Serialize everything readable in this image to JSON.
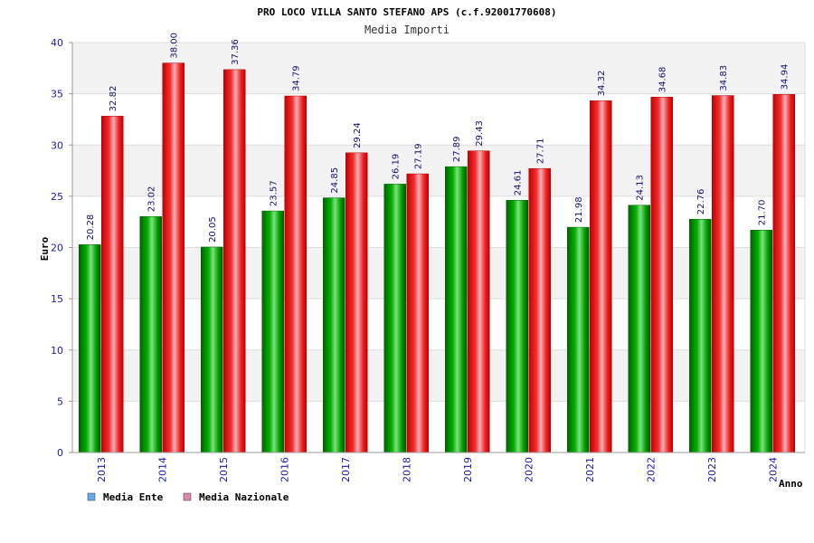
{
  "chart_data": {
    "type": "bar",
    "title": "PRO LOCO VILLA SANTO STEFANO APS (c.f.92001770608)",
    "subtitle": "Media Importi",
    "xlabel": "Anno",
    "ylabel": "Euro",
    "ylim": [
      0,
      40
    ],
    "yticks": [
      0,
      5,
      10,
      15,
      20,
      25,
      30,
      35,
      40
    ],
    "grid": true,
    "legend_position": "bottom-left",
    "categories": [
      "2013",
      "2014",
      "2015",
      "2016",
      "2017",
      "2018",
      "2019",
      "2020",
      "2021",
      "2022",
      "2023",
      "2024"
    ],
    "series": [
      {
        "name": "Media Ente",
        "color": "#00a000",
        "legend_color": "#66aaee",
        "values": [
          20.28,
          23.02,
          20.05,
          23.57,
          24.85,
          26.19,
          27.89,
          24.61,
          21.98,
          24.13,
          22.76,
          21.7
        ],
        "labels": [
          "20.28",
          "23.02",
          "20.05",
          "23.57",
          "24.85",
          "26.19",
          "27.89",
          "24.61",
          "21.98",
          "24.13",
          "22.76",
          "21.70"
        ]
      },
      {
        "name": "Media Nazionale",
        "color": "#ee1111",
        "legend_color": "#dd88aa",
        "values": [
          32.82,
          38.0,
          37.36,
          34.79,
          29.24,
          27.19,
          29.43,
          27.71,
          34.32,
          34.68,
          34.83,
          34.94
        ],
        "labels": [
          "32.82",
          "38.00",
          "37.36",
          "34.79",
          "29.24",
          "27.19",
          "29.43",
          "27.71",
          "34.32",
          "34.68",
          "34.83",
          "34.94"
        ]
      }
    ]
  }
}
